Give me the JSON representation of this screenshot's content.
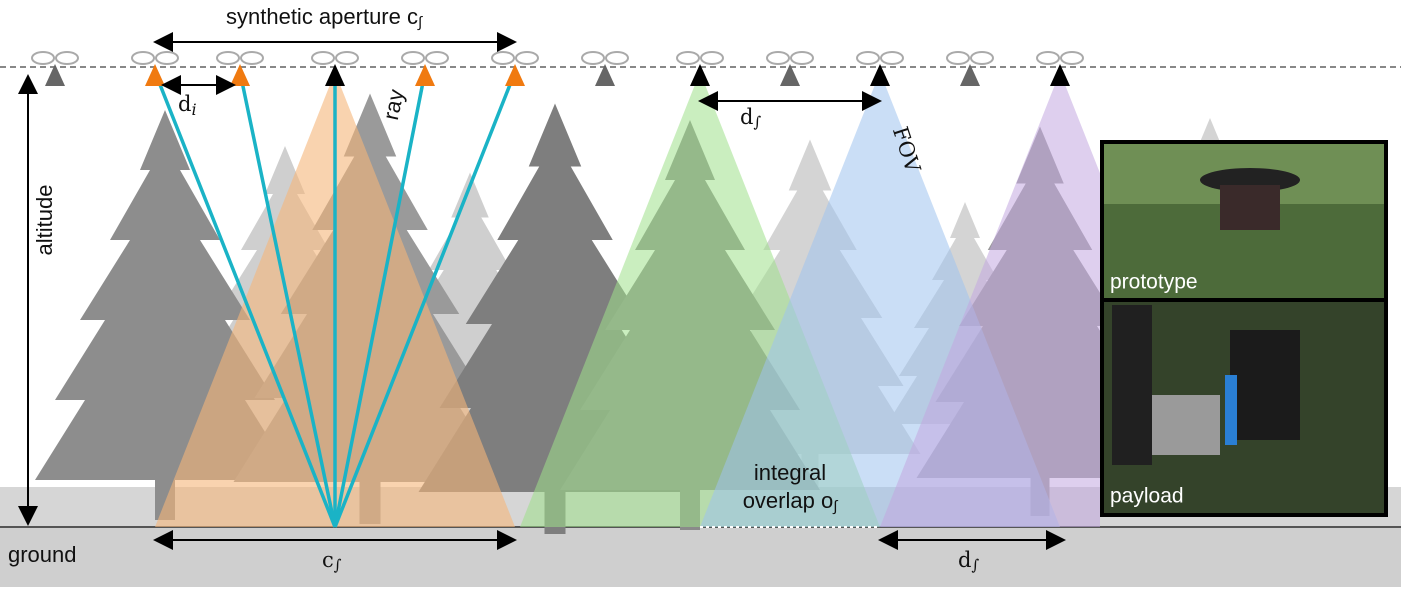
{
  "aperture_label": {
    "text": "synthetic aperture c",
    "sub": "∫"
  },
  "spacing_label": {
    "text": "d",
    "sub": "i"
  },
  "ray_label": "ray",
  "fov_label": "FOV",
  "altitude_label": "altitude",
  "ground_label": "ground",
  "bottom_aperture_label": {
    "text": "c",
    "sub": "∫"
  },
  "top_distance_label": {
    "text": "d",
    "sub": "∫"
  },
  "bottom_distance_label": {
    "text": "d",
    "sub": "∫"
  },
  "overlap_label": {
    "line1": "integral",
    "line2": "overlap o",
    "sub": "∫"
  },
  "insets": [
    {
      "label": "prototype"
    },
    {
      "label": "payload"
    }
  ]
}
